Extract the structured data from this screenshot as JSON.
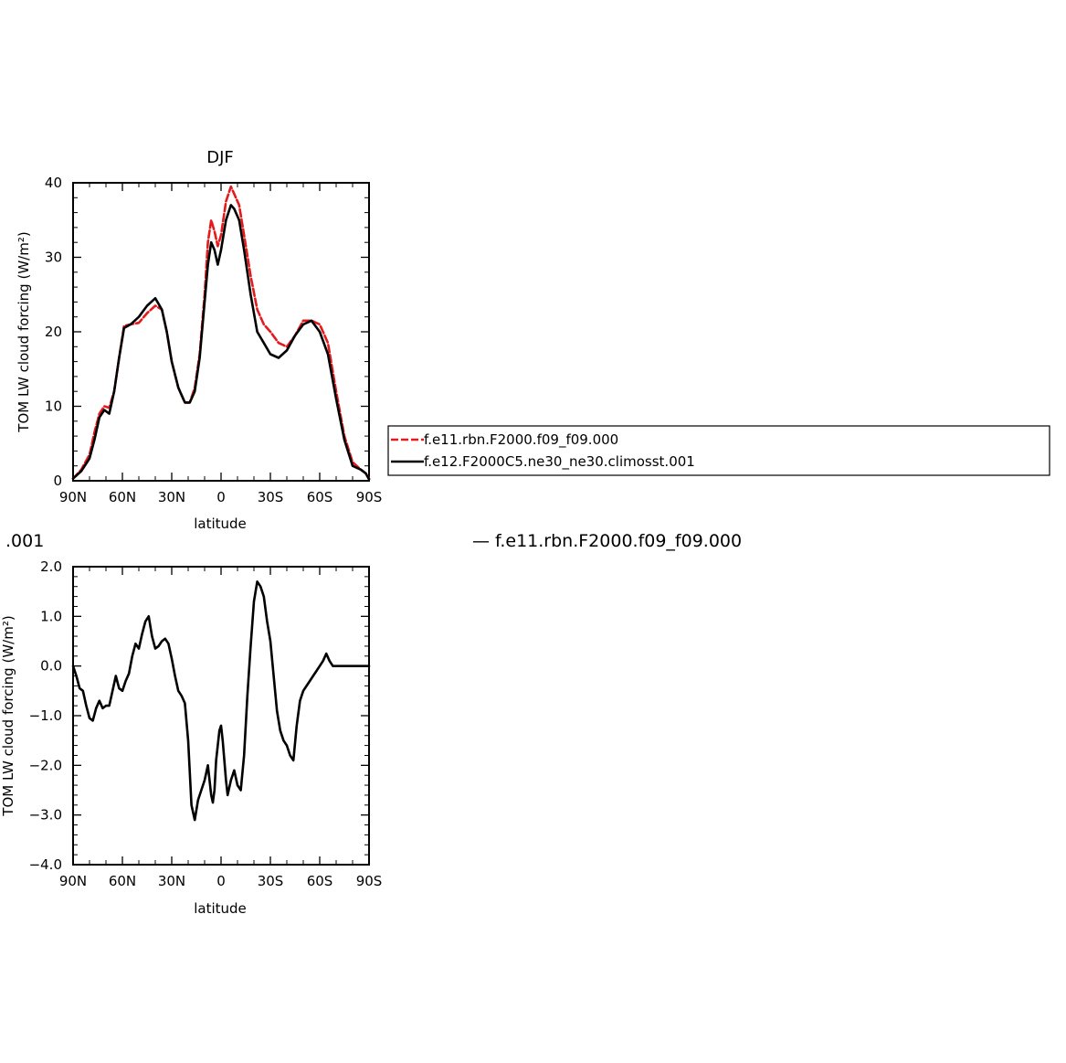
{
  "colors": {
    "series1": "#e41a1c",
    "series2": "#000000",
    "axes": "#000000"
  },
  "fragments": {
    "left_cut_text": ".001",
    "right_cut_text": "— f.e11.rbn.F2000.f09_f09.000"
  },
  "chart_data": [
    {
      "type": "line",
      "title": "DJF",
      "xlabel": "latitude",
      "ylabel": "TOM LW cloud forcing (W/m²)",
      "xlim": [
        -90,
        90
      ],
      "ylim": [
        0,
        40
      ],
      "xticks": [
        {
          "value": -90,
          "label": "90N"
        },
        {
          "value": -60,
          "label": "60N"
        },
        {
          "value": -30,
          "label": "30N"
        },
        {
          "value": 0,
          "label": "0"
        },
        {
          "value": 30,
          "label": "30S"
        },
        {
          "value": 60,
          "label": "60S"
        },
        {
          "value": 90,
          "label": "90S"
        }
      ],
      "yticks": [
        {
          "value": 0,
          "label": "0"
        },
        {
          "value": 10,
          "label": "10"
        },
        {
          "value": 20,
          "label": "20"
        },
        {
          "value": 30,
          "label": "30"
        },
        {
          "value": 40,
          "label": "40"
        }
      ],
      "legend": {
        "position": "right"
      },
      "series": [
        {
          "name": "f.e11.rbn.F2000.f09_f09.000",
          "color": "#e41a1c",
          "dash": true,
          "x": [
            -90,
            -85,
            -80,
            -77,
            -74,
            -71,
            -68,
            -65,
            -62,
            -59,
            -55,
            -50,
            -45,
            -40,
            -36,
            -33,
            -30,
            -26,
            -22,
            -19,
            -16,
            -13,
            -10,
            -8,
            -6,
            -4,
            -2,
            0,
            3,
            6,
            8,
            11,
            14,
            18,
            22,
            26,
            30,
            35,
            40,
            45,
            50,
            55,
            60,
            65,
            70,
            75,
            80,
            85,
            88,
            90
          ],
          "y": [
            0.3,
            1.5,
            3.5,
            6.5,
            9.0,
            10.0,
            9.8,
            12.0,
            16.5,
            20.8,
            21.0,
            21.2,
            22.5,
            23.5,
            23.0,
            20.0,
            16.0,
            12.5,
            10.5,
            10.5,
            12.5,
            17.0,
            25.0,
            32.0,
            35.0,
            33.5,
            31.5,
            33.0,
            37.5,
            39.5,
            38.5,
            37.0,
            33.0,
            27.5,
            23.0,
            21.0,
            20.0,
            18.5,
            18.0,
            19.5,
            21.5,
            21.5,
            21.0,
            18.5,
            12.0,
            6.0,
            2.5,
            1.5,
            1.0,
            0.3
          ]
        },
        {
          "name": "f.e12.F2000C5.ne30_ne30.climosst.001",
          "color": "#000000",
          "dash": false,
          "x": [
            -90,
            -85,
            -80,
            -77,
            -74,
            -71,
            -68,
            -65,
            -62,
            -59,
            -55,
            -50,
            -45,
            -40,
            -36,
            -33,
            -30,
            -26,
            -22,
            -19,
            -16,
            -13,
            -10,
            -8,
            -6,
            -4,
            -2,
            0,
            3,
            6,
            8,
            11,
            14,
            18,
            22,
            26,
            30,
            35,
            40,
            45,
            50,
            55,
            60,
            65,
            70,
            75,
            80,
            85,
            88,
            90
          ],
          "y": [
            0.3,
            1.3,
            3.0,
            5.5,
            8.5,
            9.5,
            9.0,
            12.0,
            16.5,
            20.5,
            21.0,
            22.0,
            23.5,
            24.5,
            23.0,
            20.0,
            16.0,
            12.5,
            10.5,
            10.5,
            12.0,
            16.5,
            24.0,
            29.0,
            32.0,
            31.0,
            29.0,
            31.0,
            35.0,
            37.0,
            36.5,
            35.0,
            31.0,
            25.0,
            20.0,
            18.5,
            17.0,
            16.5,
            17.5,
            19.5,
            21.0,
            21.5,
            20.0,
            17.0,
            11.0,
            5.5,
            2.0,
            1.5,
            1.0,
            0.2
          ]
        }
      ]
    },
    {
      "type": "line",
      "title": "",
      "xlabel": "latitude",
      "ylabel": "TOM LW cloud forcing (W/m²)",
      "xlim": [
        -90,
        90
      ],
      "ylim": [
        -4.0,
        2.0
      ],
      "xticks": [
        {
          "value": -90,
          "label": "90N"
        },
        {
          "value": -60,
          "label": "60N"
        },
        {
          "value": -30,
          "label": "30N"
        },
        {
          "value": 0,
          "label": "0"
        },
        {
          "value": 30,
          "label": "30S"
        },
        {
          "value": 60,
          "label": "60S"
        },
        {
          "value": 90,
          "label": "90S"
        }
      ],
      "yticks": [
        {
          "value": -4.0,
          "label": "−4.0"
        },
        {
          "value": -3.0,
          "label": "−3.0"
        },
        {
          "value": -2.0,
          "label": "−2.0"
        },
        {
          "value": -1.0,
          "label": "−1.0"
        },
        {
          "value": 0.0,
          "label": "0.0"
        },
        {
          "value": 1.0,
          "label": "1.0"
        },
        {
          "value": 2.0,
          "label": "2.0"
        }
      ],
      "series": [
        {
          "name": "",
          "color": "#000000",
          "dash": false,
          "x": [
            -90,
            -88,
            -86,
            -84,
            -82,
            -80,
            -78,
            -76,
            -74,
            -72,
            -70,
            -68,
            -66,
            -64,
            -62,
            -60,
            -58,
            -56,
            -54,
            -52,
            -50,
            -48,
            -46,
            -44,
            -42,
            -40,
            -38,
            -36,
            -34,
            -32,
            -30,
            -28,
            -26,
            -24,
            -22,
            -20,
            -18,
            -16,
            -14,
            -12,
            -10,
            -8,
            -6,
            -5,
            -4,
            -3,
            -2,
            -1,
            0,
            1,
            2,
            3,
            4,
            6,
            8,
            10,
            12,
            14,
            16,
            18,
            20,
            22,
            24,
            26,
            28,
            30,
            32,
            34,
            36,
            38,
            40,
            42,
            44,
            46,
            48,
            50,
            52,
            54,
            56,
            58,
            60,
            62,
            64,
            66,
            68,
            70,
            72,
            74,
            76,
            78,
            80,
            82,
            84,
            86,
            88,
            90
          ],
          "y": [
            0.0,
            -0.2,
            -0.45,
            -0.5,
            -0.8,
            -1.05,
            -1.1,
            -0.85,
            -0.7,
            -0.85,
            -0.8,
            -0.8,
            -0.5,
            -0.2,
            -0.45,
            -0.5,
            -0.3,
            -0.15,
            0.2,
            0.45,
            0.35,
            0.65,
            0.9,
            1.0,
            0.6,
            0.35,
            0.4,
            0.5,
            0.55,
            0.45,
            0.15,
            -0.2,
            -0.5,
            -0.6,
            -0.75,
            -1.5,
            -2.8,
            -3.1,
            -2.7,
            -2.5,
            -2.3,
            -2.0,
            -2.6,
            -2.75,
            -2.5,
            -1.9,
            -1.6,
            -1.3,
            -1.2,
            -1.5,
            -1.9,
            -2.3,
            -2.6,
            -2.3,
            -2.1,
            -2.4,
            -2.5,
            -1.8,
            -0.6,
            0.4,
            1.3,
            1.7,
            1.6,
            1.4,
            0.9,
            0.5,
            -0.2,
            -0.9,
            -1.3,
            -1.5,
            -1.6,
            -1.8,
            -1.9,
            -1.2,
            -0.7,
            -0.5,
            -0.4,
            -0.3,
            -0.2,
            -0.1,
            0.0,
            0.1,
            0.25,
            0.1,
            0.0,
            0.0,
            0.0,
            0.0,
            0.0,
            0.0,
            0.0,
            0.0,
            0.0,
            0.0,
            0.0,
            0.0
          ]
        }
      ]
    }
  ]
}
